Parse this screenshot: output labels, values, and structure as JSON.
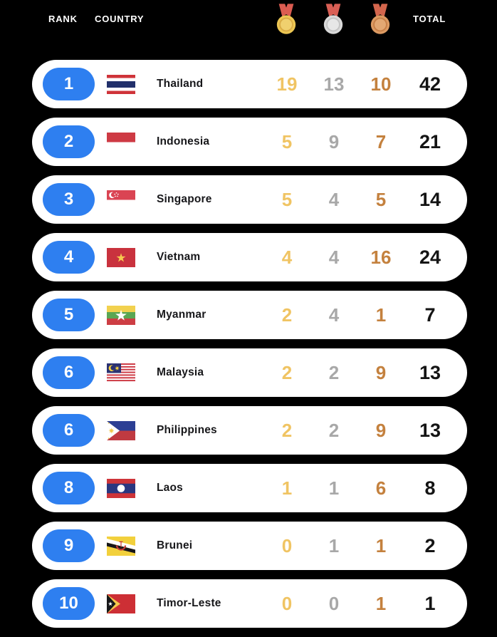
{
  "header": {
    "rank_label": "RANK",
    "country_label": "COUNTRY",
    "total_label": "TOTAL",
    "medal_icons": [
      {
        "name": "gold-medal-icon",
        "type": "gold"
      },
      {
        "name": "silver-medal-icon",
        "type": "silver"
      },
      {
        "name": "bronze-medal-icon",
        "type": "bronze"
      }
    ]
  },
  "colors": {
    "background": "#000000",
    "row_background": "#ffffff",
    "rank_badge": "#2e7ff0",
    "gold_text": "#f0c463",
    "silver_text": "#a8a8a8",
    "bronze_text": "#c4813e",
    "total_text": "#141414"
  },
  "rows": [
    {
      "rank": "1",
      "country": "Thailand",
      "flag": "thailand",
      "gold": "19",
      "silver": "13",
      "bronze": "10",
      "total": "42"
    },
    {
      "rank": "2",
      "country": "Indonesia",
      "flag": "indonesia",
      "gold": "5",
      "silver": "9",
      "bronze": "7",
      "total": "21"
    },
    {
      "rank": "3",
      "country": "Singapore",
      "flag": "singapore",
      "gold": "5",
      "silver": "4",
      "bronze": "5",
      "total": "14"
    },
    {
      "rank": "4",
      "country": "Vietnam",
      "flag": "vietnam",
      "gold": "4",
      "silver": "4",
      "bronze": "16",
      "total": "24"
    },
    {
      "rank": "5",
      "country": "Myanmar",
      "flag": "myanmar",
      "gold": "2",
      "silver": "4",
      "bronze": "1",
      "total": "7"
    },
    {
      "rank": "6",
      "country": "Malaysia",
      "flag": "malaysia",
      "gold": "2",
      "silver": "2",
      "bronze": "9",
      "total": "13"
    },
    {
      "rank": "6",
      "country": "Philippines",
      "flag": "philippines",
      "gold": "2",
      "silver": "2",
      "bronze": "9",
      "total": "13"
    },
    {
      "rank": "8",
      "country": "Laos",
      "flag": "laos",
      "gold": "1",
      "silver": "1",
      "bronze": "6",
      "total": "8"
    },
    {
      "rank": "9",
      "country": "Brunei",
      "flag": "brunei",
      "gold": "0",
      "silver": "1",
      "bronze": "1",
      "total": "2"
    },
    {
      "rank": "10",
      "country": "Timor-Leste",
      "flag": "timor-leste",
      "gold": "0",
      "silver": "0",
      "bronze": "1",
      "total": "1"
    }
  ]
}
